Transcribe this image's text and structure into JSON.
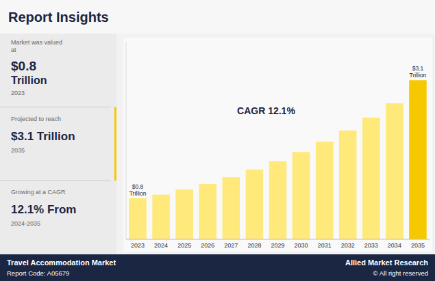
{
  "chart_data": {
    "type": "bar",
    "title": "Report Insights",
    "categories": [
      "2023",
      "2024",
      "2025",
      "2026",
      "2027",
      "2028",
      "2029",
      "2030",
      "2031",
      "2032",
      "2033",
      "2034",
      "2035"
    ],
    "values": [
      0.8,
      0.87,
      0.97,
      1.08,
      1.21,
      1.36,
      1.52,
      1.7,
      1.9,
      2.12,
      2.37,
      2.65,
      3.1
    ],
    "value_labels": [
      "$0.8\nTrillion",
      null,
      null,
      null,
      null,
      null,
      null,
      null,
      null,
      null,
      null,
      null,
      "$3.1\nTrillion"
    ],
    "colors": [
      "#FFE97A",
      "#FFE97A",
      "#FFE97A",
      "#FFE97A",
      "#FFE97A",
      "#FFE97A",
      "#FFE97A",
      "#FFE97A",
      "#FFE97A",
      "#FFE97A",
      "#FFE97A",
      "#FFE97A",
      "#F5C800"
    ],
    "ylim": [
      0,
      3.85
    ],
    "yticks": [],
    "tick_labels": "x",
    "grid": false,
    "annotations": [
      "CAGR 12.1%",
      "Market was valued\nat",
      "$0.8",
      "Trillion",
      "2023",
      "Projected to reach",
      "$3.1 Trillion",
      "2035",
      "Growing at a CAGR",
      "12.1% From",
      "2024-2035",
      "Travel Accommodation Market",
      "Report Code: A05679",
      "Allied Market Research",
      "© All right reserved"
    ]
  }
}
